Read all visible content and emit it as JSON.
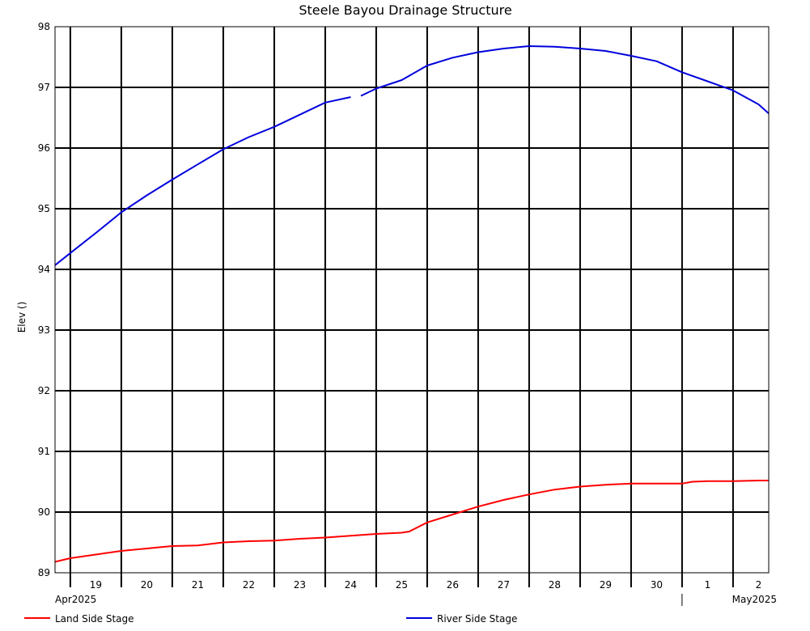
{
  "chart_data": {
    "type": "line",
    "title": "Steele Bayou Drainage Structure",
    "ylabel": "Elev ()",
    "ylim": [
      89,
      98
    ],
    "yticks": [
      "89",
      "90",
      "91",
      "92",
      "93",
      "94",
      "95",
      "96",
      "97",
      "98"
    ],
    "x_range": [
      0.7,
      14.7
    ],
    "day_lines": [
      1,
      2,
      3,
      4,
      5,
      6,
      7,
      8,
      9,
      10,
      11,
      12,
      13,
      14
    ],
    "x_tick_labels": [
      {
        "x": 1.5,
        "label": "19"
      },
      {
        "x": 2.5,
        "label": "20"
      },
      {
        "x": 3.5,
        "label": "21"
      },
      {
        "x": 4.5,
        "label": "22"
      },
      {
        "x": 5.5,
        "label": "23"
      },
      {
        "x": 6.5,
        "label": "24"
      },
      {
        "x": 7.5,
        "label": "25"
      },
      {
        "x": 8.5,
        "label": "26"
      },
      {
        "x": 9.5,
        "label": "27"
      },
      {
        "x": 10.5,
        "label": "28"
      },
      {
        "x": 11.5,
        "label": "29"
      },
      {
        "x": 12.5,
        "label": "30"
      },
      {
        "x": 13.5,
        "label": "1"
      },
      {
        "x": 14.5,
        "label": "2"
      }
    ],
    "month_labels": [
      "Apr2025",
      "May2025"
    ],
    "month_boundary_x": 13,
    "grid": true,
    "legend_position": "bottom",
    "series": [
      {
        "name": "Land Side Stage",
        "color": "#ff0000",
        "x": [
          0.7,
          1.0,
          1.5,
          2.0,
          2.5,
          3.0,
          3.5,
          4.0,
          4.5,
          5.0,
          5.5,
          6.0,
          6.5,
          7.0,
          7.5,
          7.65,
          8.0,
          8.5,
          9.0,
          9.5,
          10.0,
          10.5,
          11.0,
          11.5,
          12.0,
          12.5,
          13.0,
          13.2,
          13.5,
          14.0,
          14.5,
          14.7
        ],
        "y": [
          89.18,
          89.24,
          89.3,
          89.36,
          89.4,
          89.44,
          89.45,
          89.5,
          89.52,
          89.53,
          89.56,
          89.58,
          89.61,
          89.64,
          89.66,
          89.68,
          89.83,
          89.96,
          90.09,
          90.2,
          90.29,
          90.37,
          90.42,
          90.45,
          90.47,
          90.47,
          90.47,
          90.5,
          90.51,
          90.51,
          90.52,
          90.52
        ]
      },
      {
        "name": "River Side Stage",
        "color": "#0000dd",
        "x": [
          0.7,
          1.0,
          1.5,
          2.0,
          2.5,
          3.0,
          3.5,
          4.0,
          4.5,
          5.0,
          5.5,
          6.0,
          6.5,
          null,
          6.7,
          7.0,
          7.5,
          8.0,
          8.5,
          9.0,
          9.5,
          10.0,
          10.5,
          11.0,
          11.5,
          12.0,
          12.5,
          13.0,
          13.5,
          14.0,
          14.5,
          14.7
        ],
        "y": [
          94.07,
          94.27,
          94.6,
          94.94,
          95.22,
          95.48,
          95.73,
          95.98,
          96.18,
          96.35,
          96.55,
          96.75,
          96.84,
          null,
          96.86,
          96.98,
          97.12,
          97.36,
          97.49,
          97.58,
          97.64,
          97.68,
          97.67,
          97.64,
          97.6,
          97.52,
          97.43,
          97.25,
          97.1,
          96.95,
          96.72,
          96.57
        ]
      }
    ]
  }
}
